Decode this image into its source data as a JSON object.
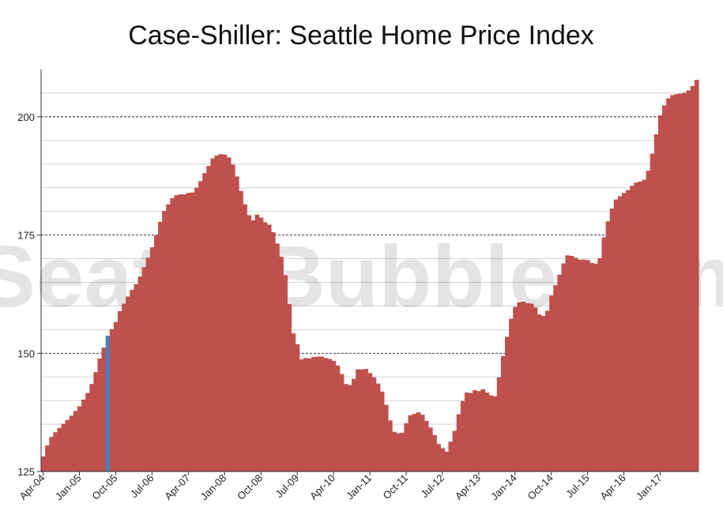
{
  "chart_data": {
    "type": "bar",
    "title": "Case-Shiller: Seattle Home Price Index",
    "watermark": "SeattleBubble.com",
    "xlabel": "",
    "ylabel": "",
    "ylim": [
      125,
      210
    ],
    "yticks": [
      125,
      150,
      175,
      200
    ],
    "grid": true,
    "start_month": "Apr-04",
    "x_tick_labels": [
      "Apr-04",
      "Jan-05",
      "Oct-05",
      "Jul-06",
      "Apr-07",
      "Jan-08",
      "Oct-08",
      "Jul-09",
      "Apr-10",
      "Jan-11",
      "Oct-11",
      "Jul-12",
      "Apr-13",
      "Jan-14",
      "Oct-14",
      "Jul-15",
      "Apr-16",
      "Jan-17"
    ],
    "highlight_month": "Aug-05",
    "colors": {
      "bar": "#c0504d",
      "highlight": "#4a7ebb"
    },
    "values": [
      128.2,
      130.5,
      132.3,
      133.3,
      134.2,
      135.1,
      135.9,
      136.8,
      137.8,
      138.8,
      140.2,
      141.6,
      143.5,
      146.0,
      148.9,
      151.2,
      153.7,
      155.1,
      156.6,
      158.9,
      160.5,
      162.0,
      163.4,
      164.6,
      166.2,
      168.2,
      170.2,
      172.4,
      174.9,
      177.8,
      180.1,
      181.5,
      182.8,
      183.4,
      183.6,
      183.6,
      183.9,
      184.0,
      185.0,
      186.4,
      188.1,
      189.6,
      191.2,
      191.8,
      192.1,
      192.0,
      191.4,
      189.9,
      187.4,
      184.3,
      181.5,
      179.2,
      178.1,
      179.3,
      178.7,
      177.7,
      177.2,
      175.6,
      173.2,
      170.4,
      166.5,
      160.4,
      154.2,
      151.9,
      148.7,
      149.0,
      148.9,
      149.2,
      149.3,
      149.3,
      149.0,
      148.8,
      148.4,
      147.4,
      145.6,
      143.5,
      143.3,
      144.6,
      146.6,
      146.6,
      146.7,
      145.8,
      144.9,
      143.6,
      141.9,
      139.1,
      135.8,
      133.4,
      133.1,
      133.2,
      135.2,
      136.9,
      137.2,
      137.5,
      137.0,
      135.7,
      134.3,
      132.7,
      130.8,
      129.9,
      129.2,
      131.3,
      133.6,
      137.1,
      139.9,
      141.7,
      141.6,
      142.2,
      142.0,
      142.4,
      141.7,
      141.1,
      140.9,
      144.9,
      149.4,
      153.5,
      157.3,
      159.8,
      160.8,
      160.9,
      160.6,
      160.5,
      159.7,
      158.2,
      157.9,
      159.0,
      162.2,
      164.4,
      166.6,
      169.0,
      170.7,
      170.6,
      170.2,
      169.8,
      169.8,
      169.7,
      169.1,
      168.9,
      170.1,
      174.5,
      177.9,
      180.6,
      182.5,
      183.2,
      183.9,
      184.5,
      185.4,
      186.1,
      186.3,
      186.7,
      188.6,
      192.2,
      196.3,
      200.3,
      202.4,
      203.9,
      204.6,
      204.8,
      204.9,
      205.1,
      205.6,
      206.5,
      207.8
    ]
  }
}
